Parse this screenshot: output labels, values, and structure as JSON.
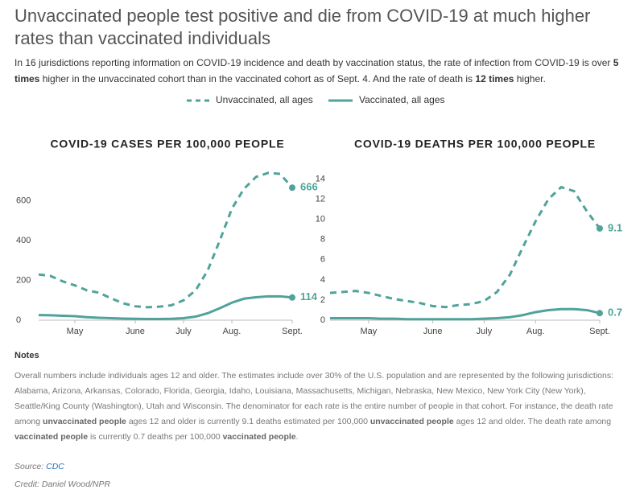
{
  "header": {
    "title": "Unvaccinated people test positive and die from COVID-19 at much higher rates than vaccinated individuals",
    "subtitle": [
      {
        "text": "In 16 jurisdictions reporting information on COVID-19 incidence and death by vaccination status, the rate of infection from COVID-19 is over ",
        "bold": false
      },
      {
        "text": "5 times",
        "bold": true
      },
      {
        "text": " higher in the unvaccinated cohort than in the vaccinated cohort as of Sept. 4. And the rate of death is ",
        "bold": false
      },
      {
        "text": "12 times",
        "bold": true
      },
      {
        "text": " higher.",
        "bold": false
      }
    ]
  },
  "chart_data": [
    {
      "type": "line",
      "title": "COVID-19 CASES PER 100,000 PEOPLE",
      "categories": [
        null,
        null,
        null,
        "May",
        null,
        null,
        null,
        null,
        "June",
        null,
        null,
        null,
        "July",
        null,
        null,
        null,
        "Aug.",
        null,
        null,
        null,
        null,
        "Sept."
      ],
      "series": [
        {
          "name": "Unvaccinated, all ages",
          "color": "#4fa39a",
          "dashed": true,
          "values": [
            230,
            222,
            195,
            175,
            150,
            138,
            110,
            85,
            70,
            65,
            68,
            75,
            100,
            150,
            250,
            400,
            560,
            660,
            720,
            740,
            735,
            666
          ]
        },
        {
          "name": "Vaccinated, all ages",
          "color": "#4fa39a",
          "dashed": false,
          "values": [
            26,
            25,
            22,
            20,
            15,
            12,
            10,
            8,
            7,
            6,
            6,
            7,
            10,
            18,
            35,
            60,
            88,
            108,
            115,
            120,
            120,
            114
          ]
        }
      ],
      "ylim": [
        0,
        760
      ],
      "yticks": [
        0,
        200,
        400,
        600
      ]
    },
    {
      "type": "line",
      "title": "COVID-19 DEATHS PER 100,000 PEOPLE",
      "categories": [
        null,
        null,
        null,
        "May",
        null,
        null,
        null,
        null,
        "June",
        null,
        null,
        null,
        "July",
        null,
        null,
        null,
        "Aug.",
        null,
        null,
        null,
        null,
        "Sept."
      ],
      "series": [
        {
          "name": "Unvaccinated, all ages",
          "color": "#4fa39a",
          "dashed": true,
          "values": [
            2.7,
            2.8,
            2.9,
            2.7,
            2.4,
            2.1,
            1.9,
            1.7,
            1.4,
            1.3,
            1.5,
            1.6,
            1.9,
            2.8,
            4.5,
            7.2,
            9.8,
            12.0,
            13.2,
            12.8,
            10.8,
            9.1
          ]
        },
        {
          "name": "Vaccinated, all ages",
          "color": "#4fa39a",
          "dashed": false,
          "values": [
            0.2,
            0.2,
            0.2,
            0.2,
            0.15,
            0.15,
            0.1,
            0.1,
            0.1,
            0.1,
            0.1,
            0.1,
            0.15,
            0.2,
            0.3,
            0.5,
            0.8,
            1.0,
            1.1,
            1.1,
            1.0,
            0.7
          ]
        }
      ],
      "ylim": [
        0,
        15
      ],
      "yticks": [
        0,
        2,
        4,
        6,
        8,
        10,
        12,
        14
      ]
    }
  ],
  "notes": {
    "heading": "Notes",
    "body": [
      {
        "text": "Overall numbers include individuals ages 12 and older. The estimates include over 30% of the U.S. population and are represented by the following jurisdictions: Alabama, Arizona, Arkansas, Colorado, Florida, Georgia, Idaho, Louisiana, Massachusetts, Michigan, Nebraska, New Mexico, New York City (New York), Seattle/King County (Washington), Utah and Wisconsin. The denominator for each rate is the entire number of people in that cohort. For instance, the death rate among ",
        "bold": false
      },
      {
        "text": "unvaccinated people",
        "bold": true
      },
      {
        "text": " ages 12 and older is currently 9.1 deaths estimated per 100,000 ",
        "bold": false
      },
      {
        "text": "unvaccinated people",
        "bold": true
      },
      {
        "text": " ages 12 and older. The death rate among ",
        "bold": false
      },
      {
        "text": "vaccinated people",
        "bold": true
      },
      {
        "text": " is currently 0.7 deaths per 100,000 ",
        "bold": false
      },
      {
        "text": "vaccinated people",
        "bold": true
      },
      {
        "text": ".",
        "bold": false
      }
    ]
  },
  "source": {
    "label": "Source:",
    "link": "CDC"
  },
  "credit": "Credit: Daniel Wood/NPR"
}
